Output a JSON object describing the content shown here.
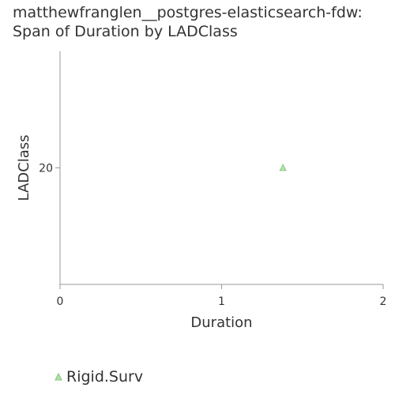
{
  "chart_data": {
    "type": "scatter",
    "title_lines": [
      "matthewfranglen__postgres-elasticsearch-fdw:",
      "Span of Duration by LADClass"
    ],
    "xlabel": "Duration",
    "ylabel": "LADClass",
    "xlim": [
      0,
      2
    ],
    "ylim": [
      16.5,
      23.5
    ],
    "x_ticks": [
      0,
      1,
      2
    ],
    "y_ticks": [
      20
    ],
    "grid": false,
    "legend_position": "bottom-left",
    "series": [
      {
        "name": "Rigid.Surv",
        "marker": "triangle",
        "color": "#b6dfb0",
        "points": [
          {
            "x": 1.38,
            "y": 20
          }
        ]
      }
    ]
  }
}
